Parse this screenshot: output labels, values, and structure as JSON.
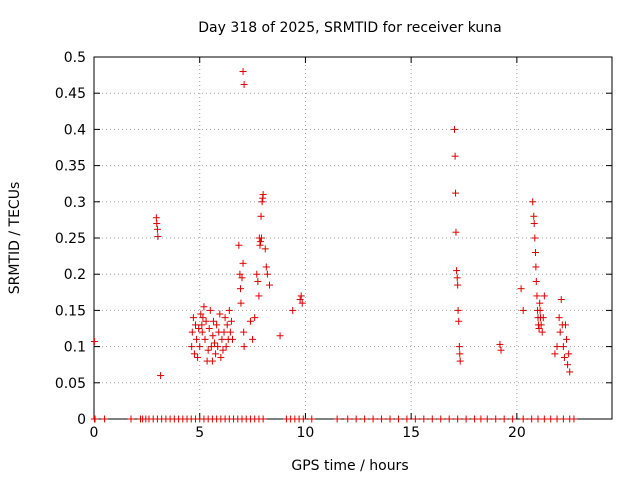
{
  "chart_data": {
    "type": "scatter",
    "title": "Day 318 of 2025, SRMTID for receiver kuna",
    "xlabel": "GPS time / hours",
    "ylabel": "SRMTID / TECUs",
    "xlim": [
      0,
      24.5
    ],
    "ylim": [
      0,
      0.5
    ],
    "xticks": [
      0,
      5,
      10,
      15,
      20
    ],
    "xtick_labels": [
      "0",
      "5",
      "10",
      "15",
      "20"
    ],
    "yticks": [
      0,
      0.05,
      0.1,
      0.15,
      0.2,
      0.25,
      0.3,
      0.35,
      0.4,
      0.45,
      0.5
    ],
    "ytick_labels": [
      "0",
      "0.05",
      "0.1",
      "0.15",
      "0.2",
      "0.25",
      "0.3",
      "0.35",
      "0.4",
      "0.45",
      "0.5"
    ],
    "grid": true,
    "marker": "+",
    "color": "#dd0000",
    "series": [
      {
        "name": "SRMTID",
        "x": [
          0.02,
          0.05,
          0.5,
          1.75,
          2.2,
          2.3,
          2.45,
          2.6,
          2.8,
          3.0,
          3.2,
          3.4,
          3.6,
          3.8,
          4.0,
          4.2,
          4.4,
          4.6,
          4.8,
          5.0,
          5.2,
          5.4,
          5.6,
          5.8,
          6.0,
          6.2,
          6.4,
          6.6,
          6.8,
          7.0,
          7.2,
          7.4,
          7.6,
          7.8,
          8.0,
          9.1,
          9.3,
          9.5,
          9.7,
          9.9,
          10.3,
          11.5,
          12.0,
          12.4,
          12.8,
          13.2,
          13.6,
          14.0,
          14.4,
          14.8,
          15.2,
          15.6,
          16.0,
          16.4,
          16.8,
          17.2,
          17.6,
          18.0,
          18.3,
          18.6,
          19.0,
          19.4,
          19.8,
          20.3,
          20.7,
          21.0,
          21.3,
          21.6,
          21.9,
          22.2,
          22.5,
          22.7,
          0.02,
          2.95,
          2.97,
          3.0,
          3.02,
          3.15,
          4.62,
          4.65,
          4.7,
          4.75,
          4.8,
          4.85,
          4.9,
          4.95,
          5.0,
          5.05,
          5.1,
          5.12,
          5.15,
          5.2,
          5.25,
          5.3,
          5.35,
          5.4,
          5.45,
          5.5,
          5.55,
          5.6,
          5.62,
          5.65,
          5.7,
          5.75,
          5.8,
          5.85,
          5.9,
          5.95,
          6.0,
          6.05,
          6.1,
          6.15,
          6.2,
          6.25,
          6.3,
          6.35,
          6.4,
          6.45,
          6.5,
          6.55,
          6.85,
          6.9,
          6.93,
          6.95,
          7.0,
          7.05,
          7.08,
          7.1,
          7.05,
          7.1,
          7.4,
          7.5,
          7.6,
          7.7,
          7.75,
          7.8,
          7.82,
          7.85,
          7.88,
          7.9,
          7.92,
          7.95,
          7.98,
          8.0,
          8.1,
          8.15,
          8.2,
          8.3,
          8.8,
          9.4,
          9.75,
          9.8,
          9.85,
          17.05,
          17.08,
          17.1,
          17.12,
          17.15,
          17.18,
          17.2,
          17.22,
          17.25,
          17.28,
          17.3,
          17.32,
          19.2,
          19.25,
          20.2,
          20.3,
          20.75,
          20.8,
          20.82,
          20.85,
          20.88,
          20.9,
          20.92,
          20.95,
          20.98,
          21.0,
          21.02,
          21.05,
          21.08,
          21.1,
          21.12,
          21.15,
          21.2,
          21.25,
          21.3,
          21.8,
          21.9,
          22.0,
          22.05,
          22.1,
          22.15,
          22.2,
          22.25,
          22.3,
          22.35,
          22.4,
          22.45,
          22.5
        ],
        "y": [
          0.107,
          0,
          0,
          0,
          0,
          0,
          0,
          0,
          0,
          0,
          0,
          0,
          0,
          0,
          0,
          0,
          0,
          0,
          0,
          0,
          0,
          0,
          0,
          0,
          0,
          0,
          0,
          0,
          0,
          0,
          0,
          0,
          0,
          0,
          0,
          0,
          0,
          0,
          0,
          0,
          0,
          0,
          0,
          0,
          0,
          0,
          0,
          0,
          0,
          0,
          0,
          0,
          0,
          0,
          0,
          0,
          0,
          0,
          0,
          0,
          0,
          0,
          0,
          0,
          0,
          0,
          0,
          0,
          0,
          0,
          0,
          0,
          0,
          0.278,
          0.27,
          0.262,
          0.252,
          0.06,
          0.1,
          0.12,
          0.14,
          0.09,
          0.13,
          0.11,
          0.085,
          0.125,
          0.1,
          0.145,
          0.13,
          0.12,
          0.14,
          0.155,
          0.11,
          0.135,
          0.08,
          0.095,
          0.125,
          0.15,
          0.1,
          0.08,
          0.115,
          0.135,
          0.105,
          0.09,
          0.13,
          0.1,
          0.12,
          0.145,
          0.085,
          0.11,
          0.095,
          0.12,
          0.14,
          0.1,
          0.13,
          0.11,
          0.15,
          0.12,
          0.135,
          0.11,
          0.24,
          0.2,
          0.18,
          0.16,
          0.195,
          0.215,
          0.12,
          0.1,
          0.48,
          0.462,
          0.135,
          0.11,
          0.14,
          0.2,
          0.19,
          0.17,
          0.25,
          0.24,
          0.245,
          0.28,
          0.25,
          0.3,
          0.305,
          0.31,
          0.235,
          0.21,
          0.2,
          0.185,
          0.115,
          0.15,
          0.165,
          0.17,
          0.16,
          0.4,
          0.363,
          0.312,
          0.258,
          0.205,
          0.195,
          0.185,
          0.15,
          0.135,
          0.1,
          0.09,
          0.08,
          0.103,
          0.095,
          0.18,
          0.15,
          0.3,
          0.28,
          0.27,
          0.25,
          0.23,
          0.21,
          0.19,
          0.17,
          0.15,
          0.14,
          0.13,
          0.125,
          0.16,
          0.15,
          0.14,
          0.13,
          0.12,
          0.14,
          0.17,
          0.09,
          0.1,
          0.14,
          0.12,
          0.165,
          0.13,
          0.1,
          0.085,
          0.13,
          0.11,
          0.075,
          0.09,
          0.065
        ]
      }
    ]
  }
}
